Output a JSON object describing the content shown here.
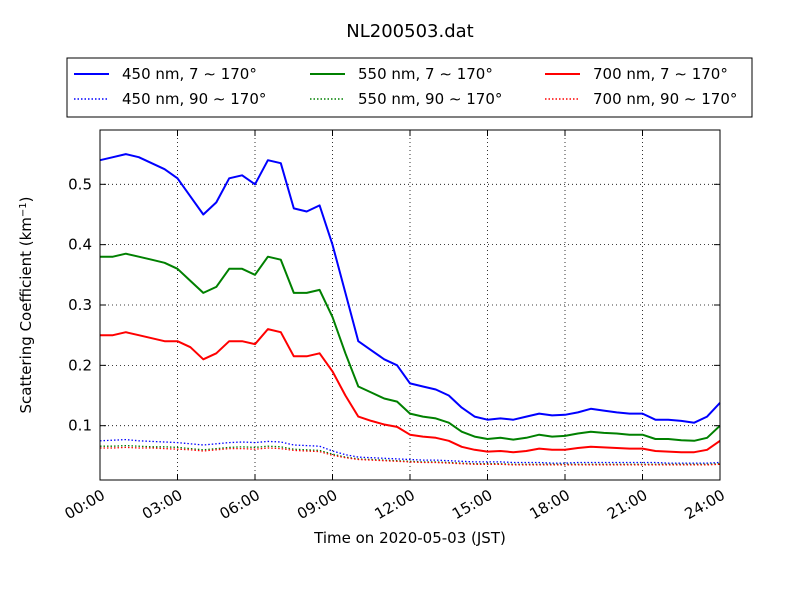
{
  "chart_data": {
    "type": "line",
    "title": "NL200503.dat",
    "xlabel": "Time on 2020-05-03 (JST)",
    "ylabel_main": "Scattering Coefficient (km",
    "ylabel_sup": "−1",
    "ylabel_close": ")",
    "xlim": [
      0,
      24
    ],
    "ylim": [
      0.01,
      0.59
    ],
    "x_ticks": [
      0,
      3,
      6,
      9,
      12,
      15,
      18,
      21,
      24
    ],
    "x_tick_labels": [
      "00:00",
      "03:00",
      "06:00",
      "09:00",
      "12:00",
      "15:00",
      "18:00",
      "21:00",
      "24:00"
    ],
    "y_ticks": [
      0.1,
      0.2,
      0.3,
      0.4,
      0.5
    ],
    "y_tick_labels": [
      "0.1",
      "0.2",
      "0.3",
      "0.4",
      "0.5"
    ],
    "grid": true,
    "legend_position": "top",
    "x": [
      0,
      0.5,
      1,
      1.5,
      2,
      2.5,
      3,
      3.5,
      4,
      4.5,
      5,
      5.5,
      6,
      6.5,
      7,
      7.5,
      8,
      8.5,
      9,
      9.5,
      10,
      10.5,
      11,
      11.5,
      12,
      12.5,
      13,
      13.5,
      14,
      14.5,
      15,
      15.5,
      16,
      16.5,
      17,
      17.5,
      18,
      18.5,
      19,
      19.5,
      20,
      20.5,
      21,
      21.5,
      22,
      22.5,
      23,
      23.5,
      24
    ],
    "series": [
      {
        "name": "450 nm, 7 ∼ 170°",
        "color": "#0000ff",
        "style": "solid",
        "values": [
          0.54,
          0.545,
          0.55,
          0.545,
          0.535,
          0.525,
          0.51,
          0.48,
          0.45,
          0.47,
          0.51,
          0.515,
          0.5,
          0.54,
          0.535,
          0.46,
          0.455,
          0.465,
          0.4,
          0.32,
          0.24,
          0.225,
          0.21,
          0.2,
          0.17,
          0.165,
          0.16,
          0.15,
          0.13,
          0.115,
          0.11,
          0.112,
          0.11,
          0.115,
          0.12,
          0.117,
          0.118,
          0.122,
          0.128,
          0.125,
          0.122,
          0.12,
          0.12,
          0.11,
          0.11,
          0.108,
          0.105,
          0.115,
          0.138
        ]
      },
      {
        "name": "450 nm, 90 ∼ 170°",
        "color": "#0000ff",
        "style": "dotted",
        "values": [
          0.075,
          0.076,
          0.077,
          0.075,
          0.074,
          0.073,
          0.072,
          0.07,
          0.068,
          0.07,
          0.072,
          0.073,
          0.072,
          0.074,
          0.073,
          0.068,
          0.067,
          0.066,
          0.058,
          0.052,
          0.048,
          0.047,
          0.046,
          0.045,
          0.044,
          0.043,
          0.043,
          0.042,
          0.041,
          0.04,
          0.04,
          0.04,
          0.039,
          0.039,
          0.039,
          0.038,
          0.038,
          0.039,
          0.039,
          0.039,
          0.039,
          0.039,
          0.039,
          0.039,
          0.038,
          0.038,
          0.038,
          0.038,
          0.039
        ]
      },
      {
        "name": "550 nm, 7 ∼ 170°",
        "color": "#008000",
        "style": "solid",
        "values": [
          0.38,
          0.38,
          0.385,
          0.38,
          0.375,
          0.37,
          0.36,
          0.34,
          0.32,
          0.33,
          0.36,
          0.36,
          0.35,
          0.38,
          0.375,
          0.32,
          0.32,
          0.325,
          0.28,
          0.22,
          0.165,
          0.155,
          0.145,
          0.14,
          0.12,
          0.115,
          0.112,
          0.105,
          0.09,
          0.082,
          0.078,
          0.08,
          0.077,
          0.08,
          0.085,
          0.082,
          0.083,
          0.087,
          0.09,
          0.088,
          0.087,
          0.085,
          0.085,
          0.078,
          0.078,
          0.076,
          0.075,
          0.08,
          0.1
        ]
      },
      {
        "name": "550 nm, 90 ∼ 170°",
        "color": "#008000",
        "style": "dotted",
        "values": [
          0.066,
          0.066,
          0.067,
          0.066,
          0.065,
          0.065,
          0.064,
          0.062,
          0.06,
          0.062,
          0.064,
          0.065,
          0.064,
          0.066,
          0.065,
          0.061,
          0.06,
          0.059,
          0.053,
          0.048,
          0.045,
          0.044,
          0.043,
          0.042,
          0.041,
          0.04,
          0.04,
          0.039,
          0.038,
          0.037,
          0.037,
          0.037,
          0.036,
          0.036,
          0.036,
          0.036,
          0.036,
          0.036,
          0.036,
          0.036,
          0.036,
          0.036,
          0.036,
          0.036,
          0.036,
          0.036,
          0.036,
          0.036,
          0.037
        ]
      },
      {
        "name": "700 nm, 7 ∼ 170°",
        "color": "#ff0000",
        "style": "solid",
        "values": [
          0.25,
          0.25,
          0.255,
          0.25,
          0.245,
          0.24,
          0.24,
          0.23,
          0.21,
          0.22,
          0.24,
          0.24,
          0.235,
          0.26,
          0.255,
          0.215,
          0.215,
          0.22,
          0.19,
          0.15,
          0.115,
          0.108,
          0.102,
          0.098,
          0.085,
          0.082,
          0.08,
          0.075,
          0.065,
          0.06,
          0.057,
          0.058,
          0.056,
          0.058,
          0.062,
          0.06,
          0.06,
          0.063,
          0.065,
          0.064,
          0.063,
          0.062,
          0.062,
          0.058,
          0.057,
          0.056,
          0.056,
          0.06,
          0.075
        ]
      },
      {
        "name": "700 nm, 90 ∼ 170°",
        "color": "#ff0000",
        "style": "dotted",
        "values": [
          0.063,
          0.063,
          0.064,
          0.063,
          0.063,
          0.062,
          0.061,
          0.06,
          0.058,
          0.06,
          0.062,
          0.062,
          0.061,
          0.063,
          0.062,
          0.059,
          0.058,
          0.057,
          0.051,
          0.047,
          0.044,
          0.043,
          0.042,
          0.041,
          0.04,
          0.039,
          0.039,
          0.038,
          0.037,
          0.036,
          0.036,
          0.036,
          0.035,
          0.035,
          0.035,
          0.035,
          0.035,
          0.035,
          0.035,
          0.035,
          0.035,
          0.035,
          0.035,
          0.035,
          0.035,
          0.035,
          0.035,
          0.035,
          0.036
        ]
      }
    ]
  }
}
